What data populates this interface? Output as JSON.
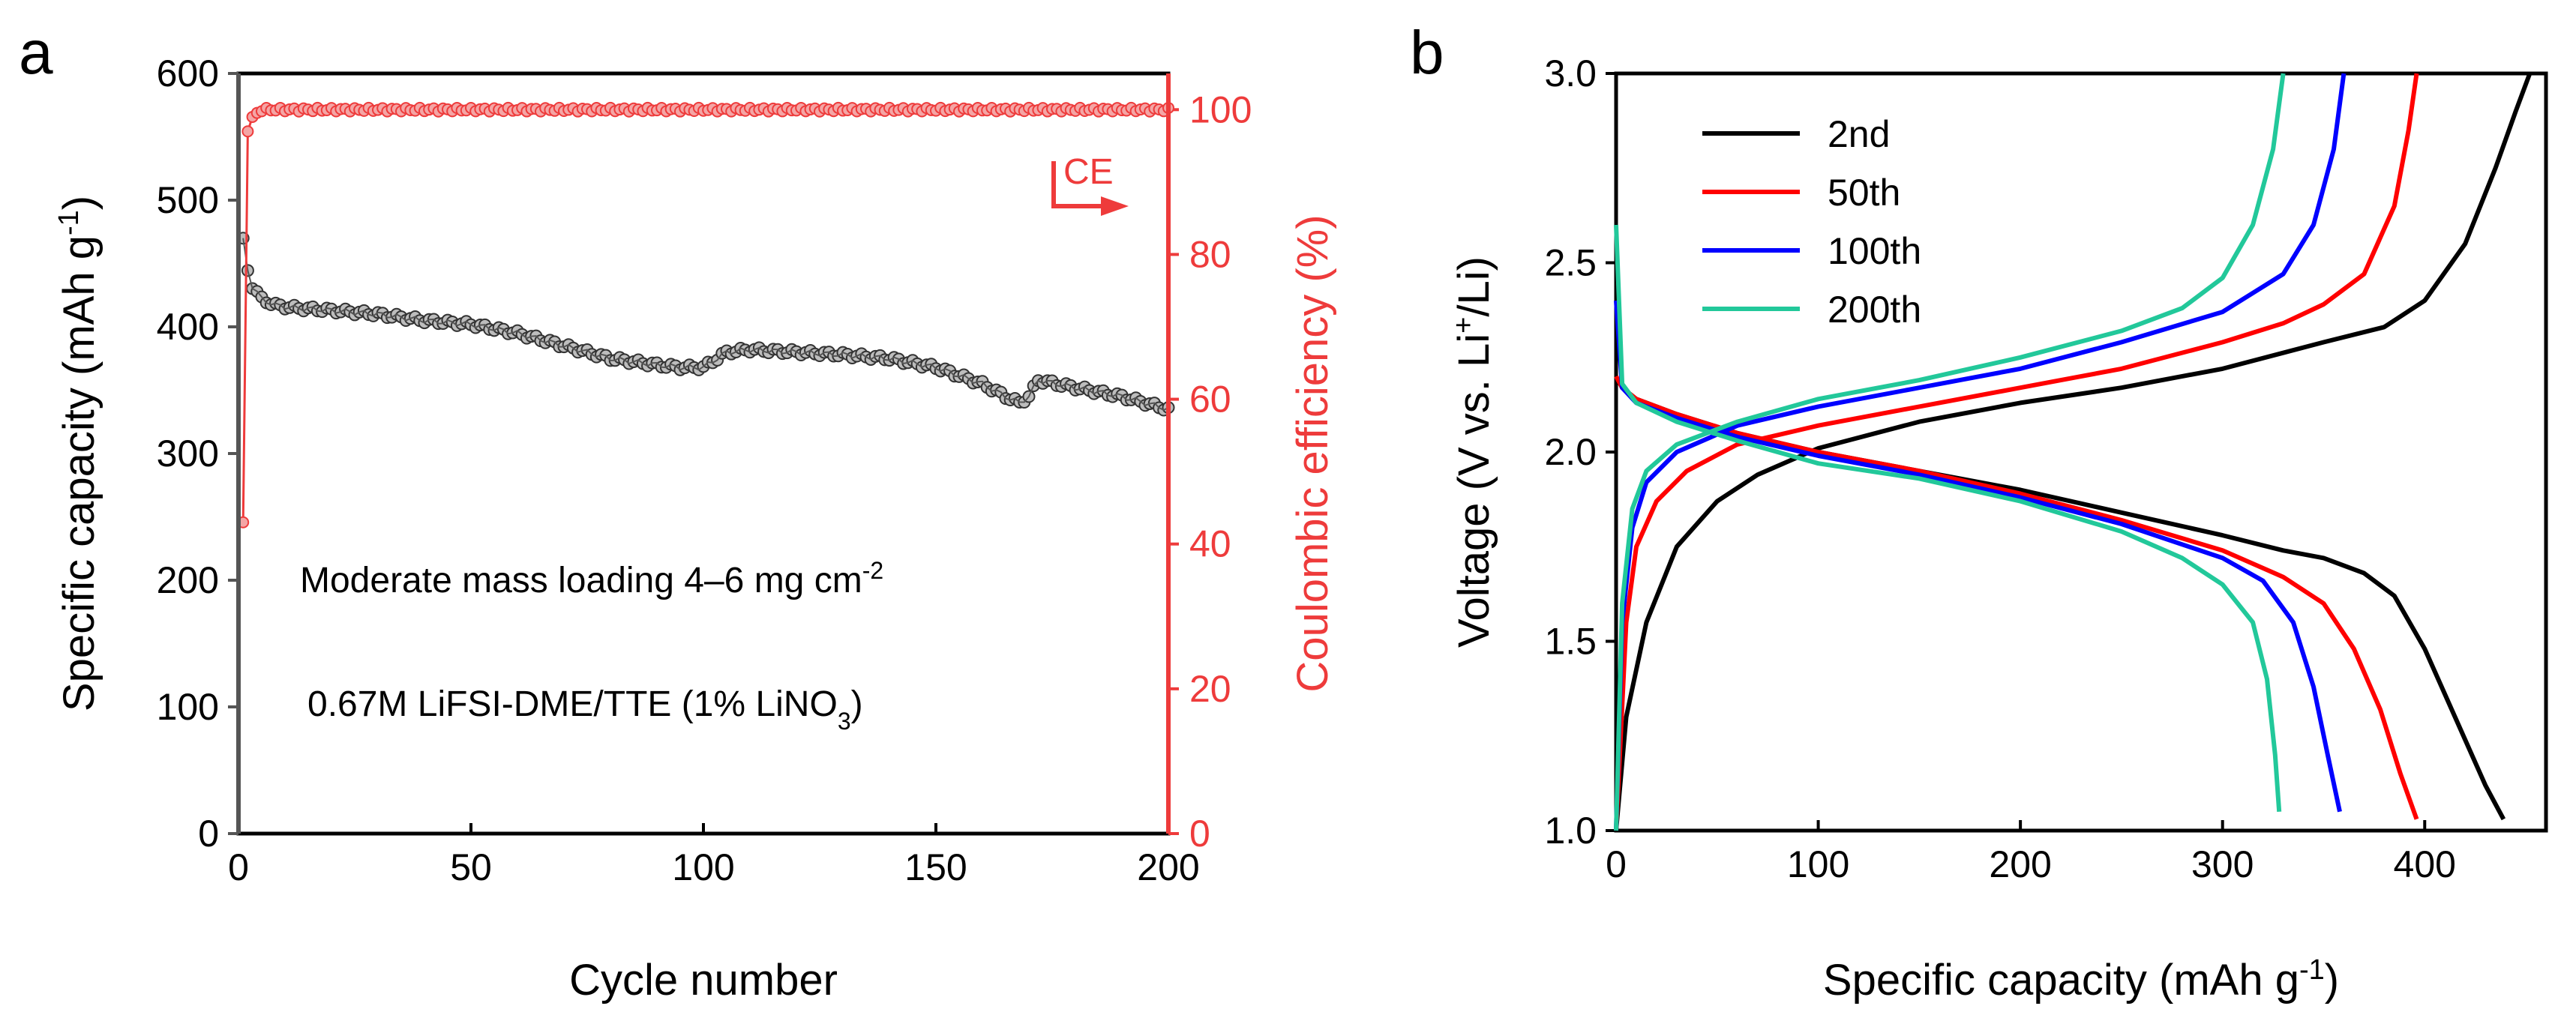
{
  "chart_data": [
    {
      "panel": "a",
      "type": "scatter",
      "title": "",
      "xlabel": "Cycle number",
      "ylabel_main": "Specific capacity (mAh g",
      "ylabel_sup": "-1",
      "ylabel_close": ")",
      "y2label": "Coulombic efficiency (%)",
      "xlim": [
        0,
        200
      ],
      "ylim": [
        0,
        600
      ],
      "y2lim": [
        0,
        105
      ],
      "xticks": [
        0,
        50,
        100,
        150,
        200
      ],
      "yticks": [
        0,
        100,
        200,
        300,
        400,
        500,
        600
      ],
      "y2ticks": [
        0,
        20,
        40,
        60,
        80,
        100
      ],
      "annotation_loading_main": "Moderate mass loading 4–6 mg cm",
      "annotation_loading_sup": "-2",
      "annotation_electrolyte_main": "0.67M LiFSI-DME/TTE (1% LiNO",
      "annotation_electrolyte_sub": "3",
      "annotation_electrolyte_close": ")",
      "ce_arrow_label": "CE",
      "series": [
        {
          "name": "Specific capacity",
          "axis": "left",
          "color": "#555555",
          "x": [
            1,
            2,
            3,
            5,
            8,
            12,
            20,
            30,
            40,
            50,
            60,
            70,
            80,
            90,
            95,
            100,
            105,
            110,
            120,
            130,
            140,
            150,
            160,
            165,
            168,
            170,
            172,
            180,
            190,
            200
          ],
          "values": [
            468,
            445,
            432,
            422,
            417,
            415,
            413,
            410,
            405,
            402,
            395,
            385,
            375,
            370,
            368,
            368,
            380,
            382,
            380,
            378,
            375,
            368,
            355,
            345,
            340,
            345,
            358,
            352,
            345,
            335
          ]
        },
        {
          "name": "Coulombic efficiency",
          "axis": "right",
          "color": "#ee3b3b",
          "x": [
            1,
            2,
            3,
            5,
            10,
            20,
            50,
            90,
            100,
            150,
            200
          ],
          "values": [
            43,
            97,
            99,
            100,
            100,
            100,
            100,
            100,
            100,
            100,
            100
          ]
        }
      ],
      "colors": {
        "left_axis": "#555555",
        "right_axis": "#ee3b3b"
      }
    },
    {
      "panel": "b",
      "type": "line",
      "title": "",
      "xlabel_main": "Specific capacity (mAh g",
      "xlabel_sup": "-1",
      "xlabel_close": ")",
      "ylabel_main": "Voltage (V vs. Li",
      "ylabel_sup": "+",
      "ylabel_close": "/Li)",
      "xlim": [
        0,
        460
      ],
      "ylim": [
        1.0,
        3.0
      ],
      "xticks": [
        0,
        100,
        200,
        300,
        400
      ],
      "yticks": [
        1.0,
        1.5,
        2.0,
        2.5,
        3.0
      ],
      "legend_position": "top-left",
      "series": [
        {
          "name": "2nd",
          "color": "#000000",
          "charge": {
            "x": [
              0,
              5,
              15,
              30,
              50,
              70,
              100,
              150,
              200,
              250,
              300,
              350,
              380,
              400,
              420,
              435,
              445,
              452
            ],
            "y": [
              1.0,
              1.3,
              1.55,
              1.75,
              1.87,
              1.94,
              2.01,
              2.08,
              2.13,
              2.17,
              2.22,
              2.29,
              2.33,
              2.4,
              2.55,
              2.75,
              2.9,
              3.0
            ]
          },
          "discharge": {
            "x": [
              0,
              3,
              10,
              30,
              60,
              100,
              150,
              200,
              250,
              300,
              330,
              350,
              370,
              385,
              400,
              415,
              430,
              439
            ],
            "y": [
              2.2,
              2.17,
              2.14,
              2.1,
              2.05,
              2.0,
              1.95,
              1.9,
              1.84,
              1.78,
              1.74,
              1.72,
              1.68,
              1.62,
              1.48,
              1.3,
              1.12,
              1.03
            ]
          }
        },
        {
          "name": "50th",
          "color": "#ff0000",
          "charge": {
            "x": [
              0,
              5,
              10,
              20,
              35,
              60,
              100,
              150,
              200,
              250,
              300,
              330,
              350,
              370,
              385,
              392,
              396
            ],
            "y": [
              1.0,
              1.55,
              1.75,
              1.87,
              1.95,
              2.02,
              2.07,
              2.12,
              2.17,
              2.22,
              2.29,
              2.34,
              2.39,
              2.47,
              2.65,
              2.85,
              3.0
            ]
          },
          "discharge": {
            "x": [
              0,
              3,
              10,
              30,
              60,
              100,
              150,
              200,
              250,
              300,
              330,
              350,
              365,
              378,
              388,
              396
            ],
            "y": [
              2.2,
              2.17,
              2.14,
              2.1,
              2.05,
              2.0,
              1.95,
              1.89,
              1.82,
              1.74,
              1.67,
              1.6,
              1.48,
              1.32,
              1.15,
              1.03
            ]
          }
        },
        {
          "name": "100th",
          "color": "#0000ff",
          "charge": {
            "x": [
              0,
              3,
              8,
              15,
              30,
              60,
              100,
              150,
              200,
              250,
              300,
              330,
              345,
              355,
              360
            ],
            "y": [
              1.0,
              1.55,
              1.8,
              1.92,
              2.0,
              2.07,
              2.12,
              2.17,
              2.22,
              2.29,
              2.37,
              2.47,
              2.6,
              2.8,
              3.0
            ]
          },
          "discharge": {
            "x": [
              0,
              3,
              10,
              30,
              60,
              100,
              150,
              200,
              250,
              300,
              320,
              335,
              345,
              352,
              358
            ],
            "y": [
              2.4,
              2.17,
              2.13,
              2.09,
              2.04,
              1.99,
              1.94,
              1.88,
              1.81,
              1.72,
              1.66,
              1.55,
              1.38,
              1.2,
              1.05
            ]
          }
        },
        {
          "name": "200th",
          "color": "#22c89a",
          "charge": {
            "x": [
              0,
              3,
              8,
              15,
              30,
              60,
              100,
              150,
              200,
              250,
              280,
              300,
              315,
              325,
              330
            ],
            "y": [
              1.0,
              1.6,
              1.85,
              1.95,
              2.02,
              2.08,
              2.14,
              2.19,
              2.25,
              2.32,
              2.38,
              2.46,
              2.6,
              2.8,
              3.0
            ]
          },
          "discharge": {
            "x": [
              0,
              3,
              10,
              30,
              60,
              100,
              150,
              200,
              250,
              280,
              300,
              315,
              322,
              326,
              328
            ],
            "y": [
              2.6,
              2.18,
              2.13,
              2.08,
              2.03,
              1.97,
              1.93,
              1.87,
              1.79,
              1.72,
              1.65,
              1.55,
              1.4,
              1.2,
              1.05
            ]
          }
        }
      ]
    }
  ],
  "panel_labels": {
    "a": "a",
    "b": "b"
  }
}
